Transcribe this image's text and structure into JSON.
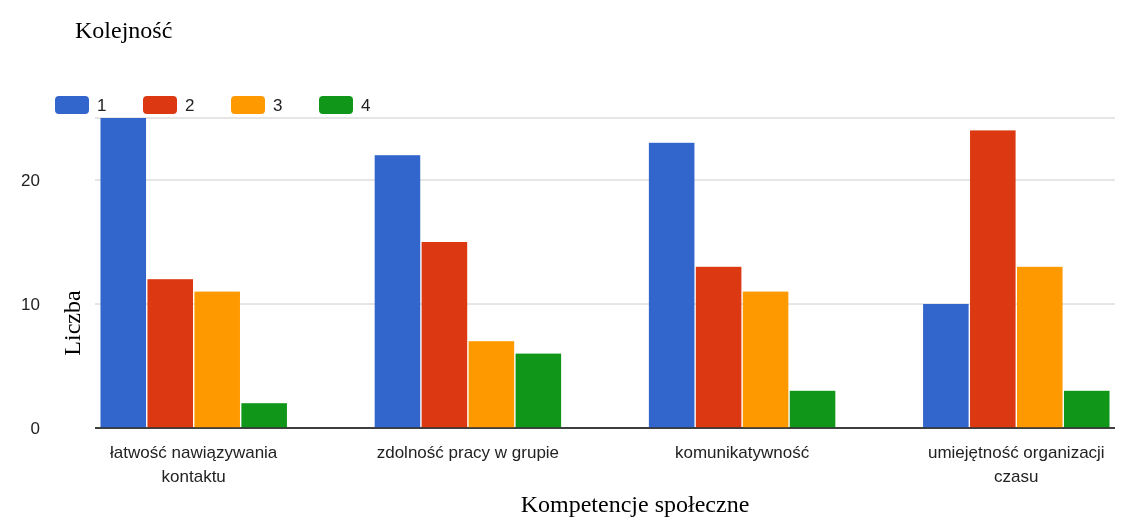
{
  "chart_data": {
    "type": "bar",
    "title": "Kolejność",
    "xlabel": "Kompetencje społeczne",
    "ylabel": "Liczba",
    "categories": [
      "łatwość nawiązywania kontaktu",
      "zdolność pracy w grupie",
      "komunikatywność",
      "umiejętność organizacji czasu"
    ],
    "series": [
      {
        "name": "1",
        "color": "#3366cc",
        "values": [
          25,
          22,
          23,
          10
        ]
      },
      {
        "name": "2",
        "color": "#dc3912",
        "values": [
          12,
          15,
          13,
          24
        ]
      },
      {
        "name": "3",
        "color": "#ff9900",
        "values": [
          11,
          7,
          11,
          13
        ]
      },
      {
        "name": "4",
        "color": "#109618",
        "values": [
          2,
          6,
          3,
          3
        ]
      }
    ],
    "ylim": [
      0,
      25
    ],
    "yticks": [
      0,
      10,
      20,
      {
        "value": 25,
        "label": null
      }
    ],
    "grid": "y",
    "legend": "top left"
  }
}
